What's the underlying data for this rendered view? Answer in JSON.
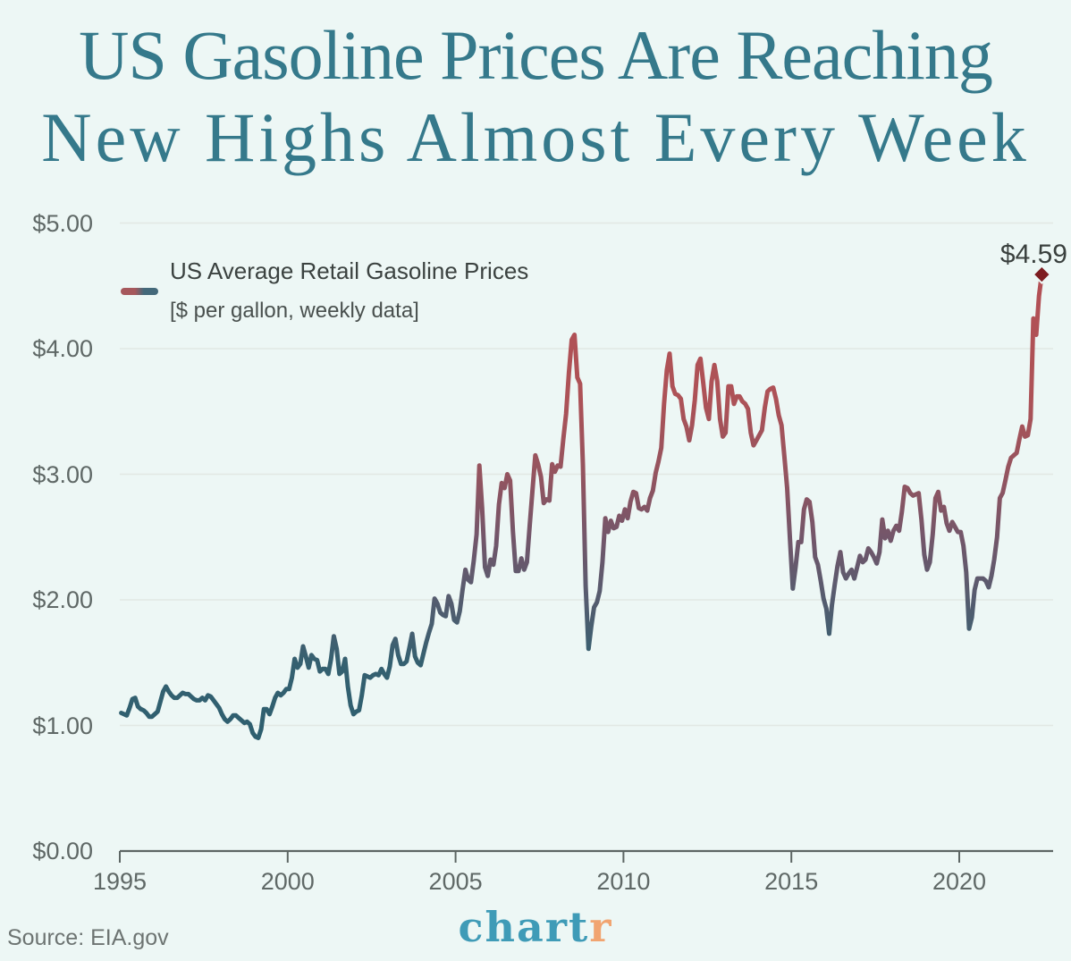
{
  "title": {
    "line1": "US Gasoline Prices Are Reaching",
    "line2": "New Highs Almost Every Week",
    "color": "#35798b"
  },
  "footer": {
    "source": "Source: EIA.gov",
    "logo_primary": "chart",
    "logo_accent": "r",
    "logo_primary_color": "#3f9bb7",
    "logo_accent_color": "#f1a470"
  },
  "colors": {
    "background": "#edf7f5",
    "gridline": "#e2e8e4",
    "axis": "#5d6664",
    "tick_label": "#5f6866",
    "line_low_teal": "#2e5f6f",
    "line_high_red": "#b35055",
    "marker_diamond": "#7d1c20"
  },
  "chart_data": {
    "type": "line",
    "title": "US Gasoline Prices Are Reaching New Highs Almost Every Week",
    "legend": {
      "label": "US Average Retail Gasoline Prices",
      "sublabel": "[$ per gallon, weekly data]",
      "position": "top-left"
    },
    "xlabel": "",
    "ylabel": "$ per gallon",
    "grid": true,
    "xlim": [
      1995,
      2022.8
    ],
    "ylim": [
      0,
      5.1
    ],
    "x_ticks": [
      1995,
      2000,
      2005,
      2010,
      2015,
      2020
    ],
    "y_ticks": [
      {
        "label": "$5.00",
        "value": 5
      },
      {
        "label": "$4.00",
        "value": 4
      },
      {
        "label": "$3.00",
        "value": 3
      },
      {
        "label": "$2.00",
        "value": 2
      },
      {
        "label": "$1.00",
        "value": 1
      },
      {
        "label": "$0.00",
        "value": 0
      }
    ],
    "annotation": {
      "label": "$4.59",
      "value": 4.59,
      "year": 2022.46,
      "marker": "diamond",
      "color": "#7d1c20"
    },
    "line_gradient": [
      {
        "price": 0.0,
        "color": "#2e5f6f"
      },
      {
        "price": 0.9,
        "color": "#2e5f6f"
      },
      {
        "price": 1.5,
        "color": "#356070"
      },
      {
        "price": 2.0,
        "color": "#555c6f"
      },
      {
        "price": 2.5,
        "color": "#73566a"
      },
      {
        "price": 3.0,
        "color": "#94545f"
      },
      {
        "price": 3.6,
        "color": "#ad5257"
      },
      {
        "price": 4.6,
        "color": "#b35055"
      }
    ],
    "series": [
      {
        "name": "US Average Retail Gasoline Prices",
        "unit": "$ per gallon",
        "frequency": "monthly approximation of weekly data",
        "start_year": 1995,
        "values": [
          1.1,
          1.09,
          1.08,
          1.14,
          1.21,
          1.22,
          1.15,
          1.13,
          1.12,
          1.1,
          1.07,
          1.07,
          1.09,
          1.11,
          1.19,
          1.27,
          1.31,
          1.27,
          1.24,
          1.22,
          1.22,
          1.24,
          1.26,
          1.25,
          1.25,
          1.23,
          1.21,
          1.2,
          1.2,
          1.22,
          1.2,
          1.24,
          1.23,
          1.2,
          1.17,
          1.14,
          1.09,
          1.05,
          1.03,
          1.05,
          1.08,
          1.08,
          1.06,
          1.04,
          1.02,
          1.03,
          1.01,
          0.94,
          0.91,
          0.9,
          0.97,
          1.13,
          1.13,
          1.09,
          1.15,
          1.22,
          1.26,
          1.24,
          1.26,
          1.29,
          1.29,
          1.38,
          1.53,
          1.46,
          1.49,
          1.63,
          1.55,
          1.46,
          1.56,
          1.53,
          1.52,
          1.43,
          1.45,
          1.45,
          1.41,
          1.53,
          1.71,
          1.61,
          1.41,
          1.43,
          1.53,
          1.31,
          1.16,
          1.09,
          1.11,
          1.12,
          1.24,
          1.4,
          1.39,
          1.38,
          1.4,
          1.41,
          1.4,
          1.45,
          1.41,
          1.38,
          1.47,
          1.64,
          1.69,
          1.56,
          1.49,
          1.49,
          1.51,
          1.62,
          1.73,
          1.55,
          1.5,
          1.48,
          1.57,
          1.66,
          1.74,
          1.81,
          2.01,
          1.97,
          1.9,
          1.88,
          1.87,
          2.03,
          1.97,
          1.84,
          1.82,
          1.91,
          2.08,
          2.24,
          2.16,
          2.14,
          2.31,
          2.52,
          3.07,
          2.73,
          2.26,
          2.19,
          2.32,
          2.28,
          2.43,
          2.76,
          2.93,
          2.89,
          3.0,
          2.95,
          2.54,
          2.23,
          2.23,
          2.33,
          2.24,
          2.3,
          2.59,
          2.88,
          3.15,
          3.08,
          2.98,
          2.77,
          2.8,
          2.79,
          3.08,
          3.02,
          3.07,
          3.06,
          3.28,
          3.48,
          3.81,
          4.07,
          4.11,
          3.77,
          3.72,
          3.08,
          2.11,
          1.61,
          1.79,
          1.94,
          1.98,
          2.07,
          2.3,
          2.65,
          2.54,
          2.63,
          2.57,
          2.58,
          2.67,
          2.63,
          2.72,
          2.65,
          2.78,
          2.86,
          2.85,
          2.73,
          2.72,
          2.74,
          2.71,
          2.81,
          2.87,
          3.01,
          3.1,
          3.21,
          3.56,
          3.83,
          3.96,
          3.7,
          3.64,
          3.63,
          3.6,
          3.44,
          3.38,
          3.27,
          3.39,
          3.59,
          3.87,
          3.92,
          3.73,
          3.53,
          3.44,
          3.74,
          3.87,
          3.74,
          3.44,
          3.3,
          3.33,
          3.7,
          3.7,
          3.56,
          3.62,
          3.62,
          3.58,
          3.56,
          3.52,
          3.33,
          3.23,
          3.27,
          3.31,
          3.35,
          3.53,
          3.66,
          3.68,
          3.69,
          3.6,
          3.47,
          3.39,
          3.14,
          2.89,
          2.49,
          2.09,
          2.26,
          2.46,
          2.46,
          2.72,
          2.8,
          2.78,
          2.62,
          2.34,
          2.28,
          2.15,
          2.01,
          1.93,
          1.73,
          1.96,
          2.12,
          2.27,
          2.38,
          2.22,
          2.17,
          2.21,
          2.24,
          2.17,
          2.26,
          2.35,
          2.3,
          2.32,
          2.41,
          2.38,
          2.34,
          2.29,
          2.38,
          2.64,
          2.49,
          2.55,
          2.47,
          2.55,
          2.59,
          2.55,
          2.7,
          2.9,
          2.89,
          2.85,
          2.83,
          2.84,
          2.85,
          2.64,
          2.36,
          2.24,
          2.3,
          2.52,
          2.81,
          2.86,
          2.71,
          2.74,
          2.61,
          2.55,
          2.62,
          2.58,
          2.54,
          2.54,
          2.43,
          2.22,
          1.77,
          1.86,
          2.08,
          2.17,
          2.17,
          2.17,
          2.15,
          2.1,
          2.19,
          2.32,
          2.5,
          2.81,
          2.85,
          2.95,
          3.06,
          3.13,
          3.15,
          3.17,
          3.28,
          3.38,
          3.3,
          3.31,
          3.44,
          4.24,
          4.11,
          4.42,
          4.59
        ]
      }
    ]
  }
}
